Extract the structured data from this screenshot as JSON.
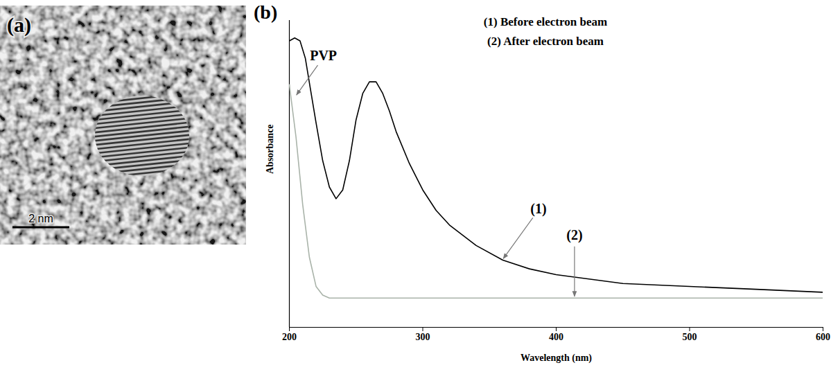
{
  "image": {
    "panel_label": "(a)",
    "scale_bar": "2 nm"
  },
  "chart_data": {
    "type": "line",
    "panel_label": "(b)",
    "x_label": "Wavelength (nm)",
    "y_label": "Absorbance",
    "xlim": [
      200,
      600
    ],
    "xticks": [
      200,
      300,
      400,
      500,
      600
    ],
    "ylim": [
      0,
      1.05
    ],
    "tick_labels": "x",
    "grid": false,
    "legend": "top-right",
    "series": [
      {
        "name": "(1) Before electron beam",
        "color": "#000000",
        "x": [
          200,
          204,
          208,
          212,
          216,
          220,
          225,
          230,
          235,
          240,
          245,
          250,
          255,
          260,
          265,
          270,
          275,
          280,
          290,
          300,
          310,
          320,
          340,
          360,
          380,
          400,
          450,
          500,
          550,
          600
        ],
        "values": [
          0.98,
          0.99,
          0.98,
          0.92,
          0.81,
          0.7,
          0.57,
          0.48,
          0.44,
          0.47,
          0.57,
          0.71,
          0.8,
          0.84,
          0.84,
          0.8,
          0.74,
          0.67,
          0.56,
          0.47,
          0.4,
          0.35,
          0.28,
          0.23,
          0.2,
          0.18,
          0.15,
          0.14,
          0.13,
          0.12
        ]
      },
      {
        "name": "(2) After electron beam",
        "color": "#a9b3a9",
        "x": [
          200,
          205,
          210,
          215,
          220,
          225,
          230,
          250,
          300,
          400,
          500,
          600
        ],
        "values": [
          0.83,
          0.65,
          0.42,
          0.24,
          0.14,
          0.11,
          0.1,
          0.1,
          0.1,
          0.1,
          0.1,
          0.1
        ]
      }
    ],
    "annotations": [
      {
        "text": "PVP",
        "x": 205,
        "y": 0.79
      },
      {
        "text": "(1)",
        "x": 360,
        "y": 0.23
      },
      {
        "text": "(2)",
        "x": 414,
        "y": 0.1
      }
    ]
  }
}
